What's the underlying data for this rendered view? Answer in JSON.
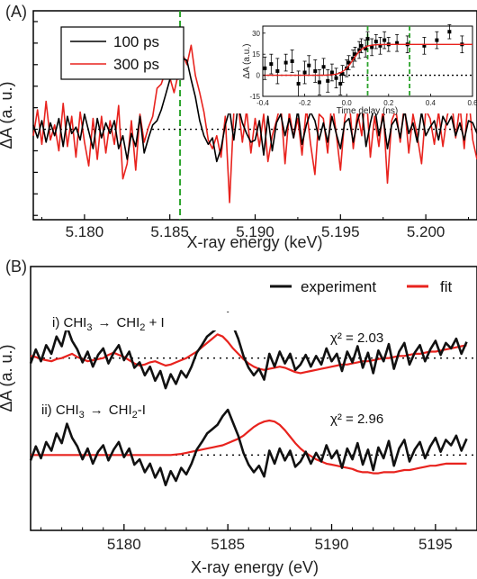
{
  "chart_data": [
    {
      "panel": "(A)",
      "type": "line",
      "xlabel": "X-ray energy (keV)",
      "ylabel": "ΔA (a. u.)",
      "xlim": [
        5.177,
        5.203
      ],
      "ylim": [
        -4.2,
        5.5
      ],
      "x_ticks": [
        5.18,
        5.185,
        5.19,
        5.195,
        5.2
      ],
      "x_tick_labels": [
        "5.180",
        "5.185",
        "5.190",
        "5.195",
        "5.200"
      ],
      "legend": {
        "position": "top-left",
        "entries": [
          "100 ps",
          "300 ps"
        ]
      },
      "series": [
        {
          "name": "100 ps",
          "color": "#000000",
          "x_start": 5.177,
          "x_step": 0.00025,
          "values": [
            0.2,
            -0.4,
            0.4,
            -0.6,
            0.3,
            -0.3,
            0.5,
            -0.8,
            0.6,
            -0.2,
            0.1,
            -0.5,
            0.7,
            -0.1,
            -0.9,
            0.5,
            -0.4,
            0.3,
            -0.2,
            0.4,
            -0.9,
            -0.3,
            -1.4,
            -0.2,
            -0.8,
            0.6,
            -1.1,
            -0.4,
            0.2,
            0.4,
            0.9,
            1.6,
            2.3,
            2.8,
            2.9,
            3.3,
            3.2,
            2.3,
            1.5,
            0.4,
            -0.3,
            -0.7,
            -0.4,
            -1.5,
            -0.9,
            0.2,
            0.9,
            -0.5,
            1.1,
            0.3,
            -0.2,
            -0.6,
            -0.5,
            0.4,
            -1.2,
            0.6,
            -1.0,
            0.3,
            0.7,
            -0.3,
            0.5,
            -0.4,
            0.9,
            -0.7,
            0.2,
            0.8,
            0.4,
            -0.5,
            0.3,
            -0.6,
            0.6,
            -0.2,
            -0.9,
            0.3,
            0.5,
            -0.6,
            0.4,
            1.0,
            -0.8,
            0.3,
            1.1,
            -0.3,
            0.6,
            -0.9,
            0.2,
            0.5,
            -0.4,
            0.9,
            -0.2,
            0.3,
            -0.6,
            0.8,
            -0.3,
            0.1,
            0.4,
            -0.5,
            0.6,
            0.2,
            0.6,
            -0.3,
            0.3,
            -0.5,
            0.4,
            0.3,
            -0.2
          ]
        },
        {
          "name": "300 ps",
          "color": "#e8231e",
          "x_start": 5.177,
          "x_step": 0.00025,
          "values": [
            -0.3,
            0.9,
            -0.7,
            1.3,
            -0.5,
            0.2,
            -1.0,
            1.2,
            -0.8,
            0.6,
            -1.3,
            0.8,
            -0.6,
            -1.7,
            0.5,
            -1.4,
            0.6,
            -1.1,
            0.4,
            -0.7,
            1.1,
            -2.3,
            -1.6,
            0.4,
            -1.9,
            0.7,
            -0.6,
            0.1,
            0.6,
            1.9,
            2.1,
            2.7,
            2.4,
            1.7,
            2.6,
            3.5,
            3.0,
            3.9,
            2.5,
            1.7,
            0.8,
            -0.5,
            -0.9,
            -0.3,
            -1.3,
            0.6,
            -3.4,
            0.8,
            1.2,
            -0.6,
            0.9,
            -1.1,
            0.5,
            -0.8,
            0.7,
            -1.5,
            -0.3,
            0.4,
            1.2,
            -1.6,
            0.8,
            -0.4,
            0.5,
            -1.2,
            1.0,
            -0.7,
            -2.1,
            0.7,
            0.5,
            -1.1,
            1.4,
            -0.2,
            -1.9,
            0.5,
            1.5,
            -0.9,
            0.8,
            -0.3,
            1.9,
            -1.3,
            0.6,
            -0.8,
            1.0,
            -2.5,
            0.4,
            0.9,
            -0.6,
            1.2,
            -1.1,
            0.7,
            -0.3,
            -1.6,
            0.9,
            0.5,
            -0.7,
            0.8,
            -0.8,
            0.6,
            1.4,
            -0.4,
            1.1,
            -0.9,
            1.6,
            -0.5,
            -1.4
          ]
        }
      ],
      "reference_lines": [
        {
          "type": "horizontal",
          "y": 0,
          "style": "dotted",
          "color": "#000000"
        },
        {
          "type": "vertical",
          "x": 5.1856,
          "style": "dashed",
          "color": "#2aa32a"
        }
      ],
      "inset": {
        "type": "scatter",
        "xlabel": "Time delay (ns)",
        "ylabel": "ΔA (a.u.)",
        "xlim": [
          -0.4,
          0.6
        ],
        "ylim": [
          -15,
          35
        ],
        "x_ticks": [
          -0.4,
          -0.2,
          0.0,
          0.2,
          0.4,
          0.6
        ],
        "x_tick_labels": [
          "-0.4",
          "-0.2",
          "0.0",
          "0.2",
          "0.4",
          "0.6"
        ],
        "y_ticks": [
          -15,
          0,
          15,
          30
        ],
        "y_tick_labels": [
          "-15",
          "0",
          "15",
          "30"
        ],
        "points": [
          {
            "x": -0.39,
            "y": 5,
            "err": 8
          },
          {
            "x": -0.36,
            "y": 8,
            "err": 7
          },
          {
            "x": -0.33,
            "y": 3,
            "err": 9
          },
          {
            "x": -0.29,
            "y": 9,
            "err": 6
          },
          {
            "x": -0.26,
            "y": 10,
            "err": 8
          },
          {
            "x": -0.23,
            "y": -6,
            "err": 9
          },
          {
            "x": -0.2,
            "y": 2,
            "err": 8
          },
          {
            "x": -0.18,
            "y": 7,
            "err": 7
          },
          {
            "x": -0.15,
            "y": 3,
            "err": 8
          },
          {
            "x": -0.13,
            "y": -5,
            "err": 9
          },
          {
            "x": -0.11,
            "y": 6,
            "err": 6
          },
          {
            "x": -0.09,
            "y": -4,
            "err": 8
          },
          {
            "x": -0.07,
            "y": 2,
            "err": 6
          },
          {
            "x": -0.05,
            "y": -2,
            "err": 7
          },
          {
            "x": -0.03,
            "y": -6,
            "err": 8
          },
          {
            "x": -0.02,
            "y": 1,
            "err": 6
          },
          {
            "x": 0.0,
            "y": 5,
            "err": 6
          },
          {
            "x": 0.01,
            "y": 9,
            "err": 5
          },
          {
            "x": 0.03,
            "y": 12,
            "err": 6
          },
          {
            "x": 0.04,
            "y": 15,
            "err": 5
          },
          {
            "x": 0.06,
            "y": 18,
            "err": 6
          },
          {
            "x": 0.07,
            "y": 21,
            "err": 5
          },
          {
            "x": 0.09,
            "y": 19,
            "err": 6
          },
          {
            "x": 0.1,
            "y": 26,
            "err": 5
          },
          {
            "x": 0.12,
            "y": 20,
            "err": 6
          },
          {
            "x": 0.14,
            "y": 24,
            "err": 5
          },
          {
            "x": 0.16,
            "y": 21,
            "err": 6
          },
          {
            "x": 0.18,
            "y": 25,
            "err": 6
          },
          {
            "x": 0.2,
            "y": 22,
            "err": 5
          },
          {
            "x": 0.24,
            "y": 23,
            "err": 6
          },
          {
            "x": 0.29,
            "y": 22,
            "err": 6
          },
          {
            "x": 0.37,
            "y": 21,
            "err": 6
          },
          {
            "x": 0.43,
            "y": 25,
            "err": 6
          },
          {
            "x": 0.49,
            "y": 31,
            "err": 5
          },
          {
            "x": 0.55,
            "y": 22,
            "err": 6
          }
        ],
        "fit": {
          "color": "#e8231e",
          "baseline": 0,
          "plateau": 22,
          "center": 0.03,
          "width": 0.025
        },
        "reference_lines": [
          {
            "type": "horizontal",
            "y": 0,
            "style": "dotted"
          },
          {
            "type": "vertical",
            "x": 0.1,
            "style": "dashed",
            "color": "#2aa32a"
          },
          {
            "type": "vertical",
            "x": 0.3,
            "style": "dashed",
            "color": "#2aa32a"
          }
        ]
      }
    },
    {
      "panel": "(B)",
      "type": "line",
      "xlabel": "X-ray energy (eV)",
      "ylabel": "ΔA (a. u.)",
      "xlim": [
        5175.5,
        5197.0
      ],
      "ylim": [
        -11.5,
        13.0
      ],
      "x_ticks": [
        5180,
        5185,
        5190,
        5195
      ],
      "x_tick_labels": [
        "5180",
        "5185",
        "5190",
        "5195"
      ],
      "legend": {
        "position": "top-right",
        "entries": [
          "experiment",
          "fit"
        ]
      },
      "annotations": [
        {
          "lhs": "i) CHI",
          "sub1": "3",
          "arrow": "→",
          "rhs": "CHI",
          "sub2": "2",
          "tail": " + I",
          "chi": "χ² = 2.03"
        },
        {
          "lhs": "ii) CHI",
          "sub1": "3",
          "arrow": "→",
          "rhs": "CHI",
          "sub2": "2",
          "tail": "-I",
          "chi": "χ² = 2.96"
        }
      ],
      "series": [
        {
          "name": "experiment",
          "role": "i) offset +4.5",
          "color": "#111111",
          "x_start": 5175.5,
          "x_step": 0.25,
          "offset": 4.5,
          "values": [
            -0.5,
            0.8,
            -0.3,
            1.2,
            0.4,
            2.0,
            1.1,
            2.9,
            1.6,
            0.8,
            -0.4,
            0.6,
            -0.8,
            0.3,
            0.9,
            -0.5,
            0.5,
            1.2,
            -0.2,
            0.6,
            -0.9,
            -0.4,
            -1.6,
            -0.8,
            -2.1,
            -1.2,
            -2.8,
            -1.5,
            -2.4,
            -1.2,
            -1.8,
            -0.8,
            0.5,
            1.2,
            2.0,
            2.4,
            2.8,
            3.6,
            4.2,
            3.0,
            1.8,
            0.2,
            -0.9,
            -1.6,
            -1.0,
            -2.0,
            0.4,
            -0.8,
            0.6,
            -0.5,
            0.4,
            -1.1,
            -0.6,
            0.3,
            -0.8,
            0.2,
            -0.6,
            0.9,
            -0.3,
            0.4,
            -1.2,
            0.6,
            -0.4,
            1.1,
            -0.9,
            0.5,
            -1.4,
            0.7,
            -0.3,
            1.3,
            -1.0,
            0.6,
            1.4,
            -0.6,
            0.5,
            1.2,
            -0.3,
            0.8,
            1.6,
            0.3,
            1.4,
            0.9,
            1.8,
            0.4,
            1.5
          ]
        },
        {
          "name": "fit",
          "role": "i) offset +4.5",
          "color": "#e8231e",
          "x_start": 5175.5,
          "x_step": 0.25,
          "offset": 4.5,
          "values": [
            0.2,
            0.1,
            -0.1,
            -0.2,
            -0.3,
            -0.1,
            0.0,
            0.2,
            0.4,
            0.1,
            -0.1,
            -0.3,
            -0.2,
            -0.1,
            0.0,
            0.3,
            0.5,
            0.3,
            0.1,
            -0.2,
            -0.5,
            -0.7,
            -0.6,
            -0.4,
            -0.3,
            -0.5,
            -0.7,
            -0.6,
            -0.4,
            -0.2,
            0.0,
            0.3,
            0.6,
            1.0,
            1.4,
            1.8,
            2.2,
            2.0,
            1.5,
            0.9,
            0.4,
            -0.1,
            -0.5,
            -0.8,
            -1.0,
            -1.1,
            -1.0,
            -0.9,
            -0.8,
            -0.9,
            -1.1,
            -1.3,
            -1.4,
            -1.3,
            -1.2,
            -1.1,
            -1.0,
            -0.9,
            -0.8,
            -0.7,
            -0.6,
            -0.6,
            -0.5,
            -0.4,
            -0.3,
            -0.3,
            -0.2,
            -0.1,
            0.0,
            0.0,
            0.1,
            0.2,
            0.2,
            0.3,
            0.4,
            0.4,
            0.5,
            0.6,
            0.6,
            0.7,
            0.8,
            0.9,
            1.0,
            1.1,
            1.2
          ]
        },
        {
          "name": "experiment",
          "role": "ii) offset -4.5",
          "color": "#111111",
          "x_start": 5175.5,
          "x_step": 0.25,
          "offset": -4.5,
          "values": [
            -0.5,
            0.8,
            -0.3,
            1.2,
            0.4,
            2.0,
            1.1,
            2.9,
            1.6,
            0.8,
            -0.4,
            0.6,
            -0.8,
            0.3,
            0.9,
            -0.5,
            0.5,
            1.2,
            -0.2,
            0.6,
            -0.9,
            -0.4,
            -1.6,
            -0.8,
            -2.1,
            -1.2,
            -2.8,
            -1.5,
            -2.4,
            -1.2,
            -1.8,
            -0.8,
            0.5,
            1.2,
            2.0,
            2.4,
            2.8,
            3.6,
            4.2,
            3.0,
            1.8,
            0.2,
            -0.9,
            -1.6,
            -1.0,
            -2.0,
            0.4,
            -0.8,
            0.6,
            -0.5,
            0.4,
            -1.1,
            -0.6,
            0.3,
            -0.8,
            0.2,
            -0.6,
            0.9,
            -0.3,
            0.4,
            -1.2,
            0.6,
            -0.4,
            1.1,
            -0.9,
            0.5,
            -1.4,
            0.7,
            -0.3,
            1.3,
            -1.0,
            0.6,
            1.4,
            -0.6,
            0.5,
            1.2,
            -0.3,
            0.8,
            1.6,
            0.3,
            1.4,
            0.9,
            1.8,
            0.4,
            1.5
          ]
        },
        {
          "name": "fit",
          "role": "ii) offset -4.5",
          "color": "#e8231e",
          "x_start": 5175.5,
          "x_step": 0.25,
          "offset": -4.5,
          "values": [
            0.0,
            0.0,
            0.0,
            0.0,
            0.0,
            0.0,
            0.0,
            0.0,
            0.0,
            0.0,
            0.0,
            0.0,
            0.0,
            0.0,
            0.0,
            0.0,
            0.0,
            0.0,
            0.0,
            0.0,
            0.0,
            0.0,
            0.0,
            0.0,
            0.0,
            0.0,
            0.0,
            0.0,
            0.05,
            0.1,
            0.2,
            0.3,
            0.4,
            0.5,
            0.6,
            0.7,
            0.8,
            0.9,
            1.1,
            1.3,
            1.5,
            1.8,
            2.2,
            2.6,
            2.9,
            3.1,
            3.2,
            3.1,
            2.8,
            2.3,
            1.7,
            1.1,
            0.6,
            0.2,
            -0.1,
            -0.4,
            -0.6,
            -0.8,
            -0.9,
            -1.0,
            -1.1,
            -1.2,
            -1.3,
            -1.5,
            -1.6,
            -1.6,
            -1.7,
            -1.7,
            -1.6,
            -1.6,
            -1.6,
            -1.5,
            -1.4,
            -1.4,
            -1.3,
            -1.2,
            -1.1,
            -1.0,
            -1.0,
            -0.9,
            -0.8,
            -0.8,
            -0.8,
            -0.8,
            -0.8
          ]
        }
      ],
      "reference_lines": [
        {
          "type": "horizontal",
          "y": 4.5,
          "style": "dotted"
        },
        {
          "type": "horizontal",
          "y": -4.5,
          "style": "dotted"
        }
      ]
    }
  ]
}
